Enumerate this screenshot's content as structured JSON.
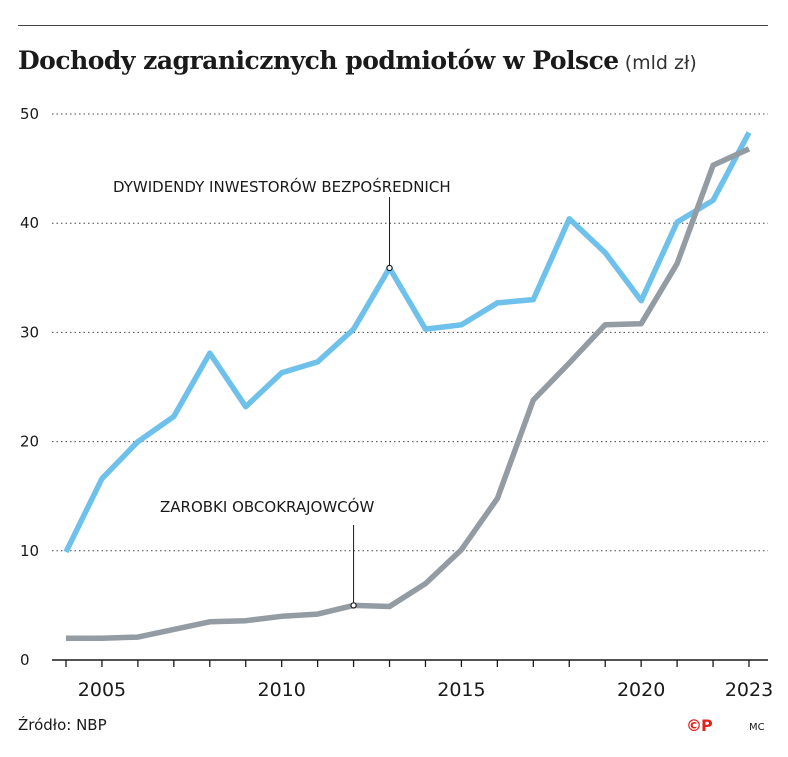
{
  "title": "Dochody zagranicznych podmiotów w Polsce",
  "unit": "(mld zł)",
  "source": "Źródło: NBP",
  "logo_text": "©P",
  "author": "MC",
  "chart_data": {
    "type": "line",
    "x": [
      2004,
      2005,
      2006,
      2007,
      2008,
      2009,
      2010,
      2011,
      2012,
      2013,
      2014,
      2015,
      2016,
      2017,
      2018,
      2019,
      2020,
      2021,
      2022,
      2023
    ],
    "x_tick_labels": [
      "2005",
      "2010",
      "2015",
      "2020",
      "2023"
    ],
    "x_tick_values": [
      2005,
      2010,
      2015,
      2020,
      2023
    ],
    "y_tick_labels": [
      "0",
      "10",
      "20",
      "30",
      "40",
      "50"
    ],
    "ylim": [
      0,
      50
    ],
    "xlim": [
      2004,
      2023
    ],
    "grid": "horizontal dotted",
    "series": [
      {
        "name": "DYWIDENDY INWESTORÓW BEZPOŚREDNICH",
        "color": "#6ec1ea",
        "values": [
          9.9,
          16.6,
          20.0,
          22.3,
          28.1,
          23.2,
          26.3,
          27.3,
          30.3,
          35.9,
          30.3,
          30.7,
          32.7,
          33.0,
          40.4,
          37.3,
          32.9,
          40.1,
          42.1,
          48.3
        ]
      },
      {
        "name": "ZAROBKI OBCOKRAJOWCÓW",
        "color": "#939ba3",
        "values": [
          2.0,
          2.0,
          2.1,
          2.8,
          3.5,
          3.6,
          4.0,
          4.2,
          5.0,
          4.9,
          7.0,
          10.1,
          14.8,
          23.8,
          27.2,
          30.7,
          30.8,
          36.3,
          45.3,
          46.8
        ]
      }
    ],
    "annotations": [
      {
        "text": "DYWIDENDY INWESTORÓW BEZPOŚREDNICH",
        "series": 0,
        "x": 2013
      },
      {
        "text": "ZAROBKI OBCOKRAJOWCÓW",
        "series": 1,
        "x": 2012
      }
    ]
  }
}
